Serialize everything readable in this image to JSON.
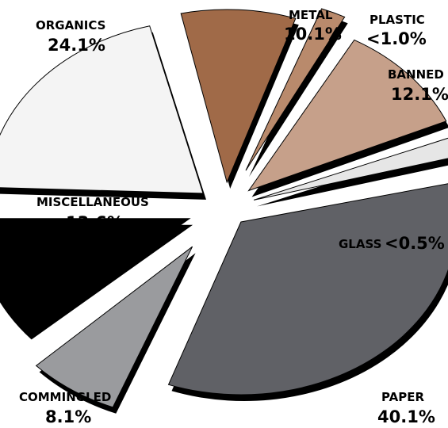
{
  "chart_data": {
    "type": "pie",
    "style": "exploded 3D pie",
    "slices": [
      {
        "label": "ORGANICS",
        "value_label": "24.1%",
        "value": 24.1,
        "color": "#f4f4f4"
      },
      {
        "label": "METAL",
        "value_label": "10.1%",
        "value": 10.1,
        "color": "#a06a48"
      },
      {
        "label": "PLASTIC",
        "value_label": "<1.0%",
        "value": 1.0,
        "color": "#b98a6c"
      },
      {
        "label": "BANNED",
        "value_label": "12.1%",
        "value": 12.1,
        "color": "#c6a08a"
      },
      {
        "label": "GLASS",
        "value_label": "<0.5%",
        "value": 0.5,
        "color": "#e6e6e6"
      },
      {
        "label": "PAPER",
        "value_label": "40.1%",
        "value": 40.1,
        "color": "#606166"
      },
      {
        "label": "COMMINGLED",
        "value_label": "8.1%",
        "value": 8.1,
        "color": "#9a9b9e"
      },
      {
        "label": "MISCELLANEOUS",
        "value_label": "13.6%",
        "value": 13.6,
        "color": "#000000"
      }
    ]
  }
}
